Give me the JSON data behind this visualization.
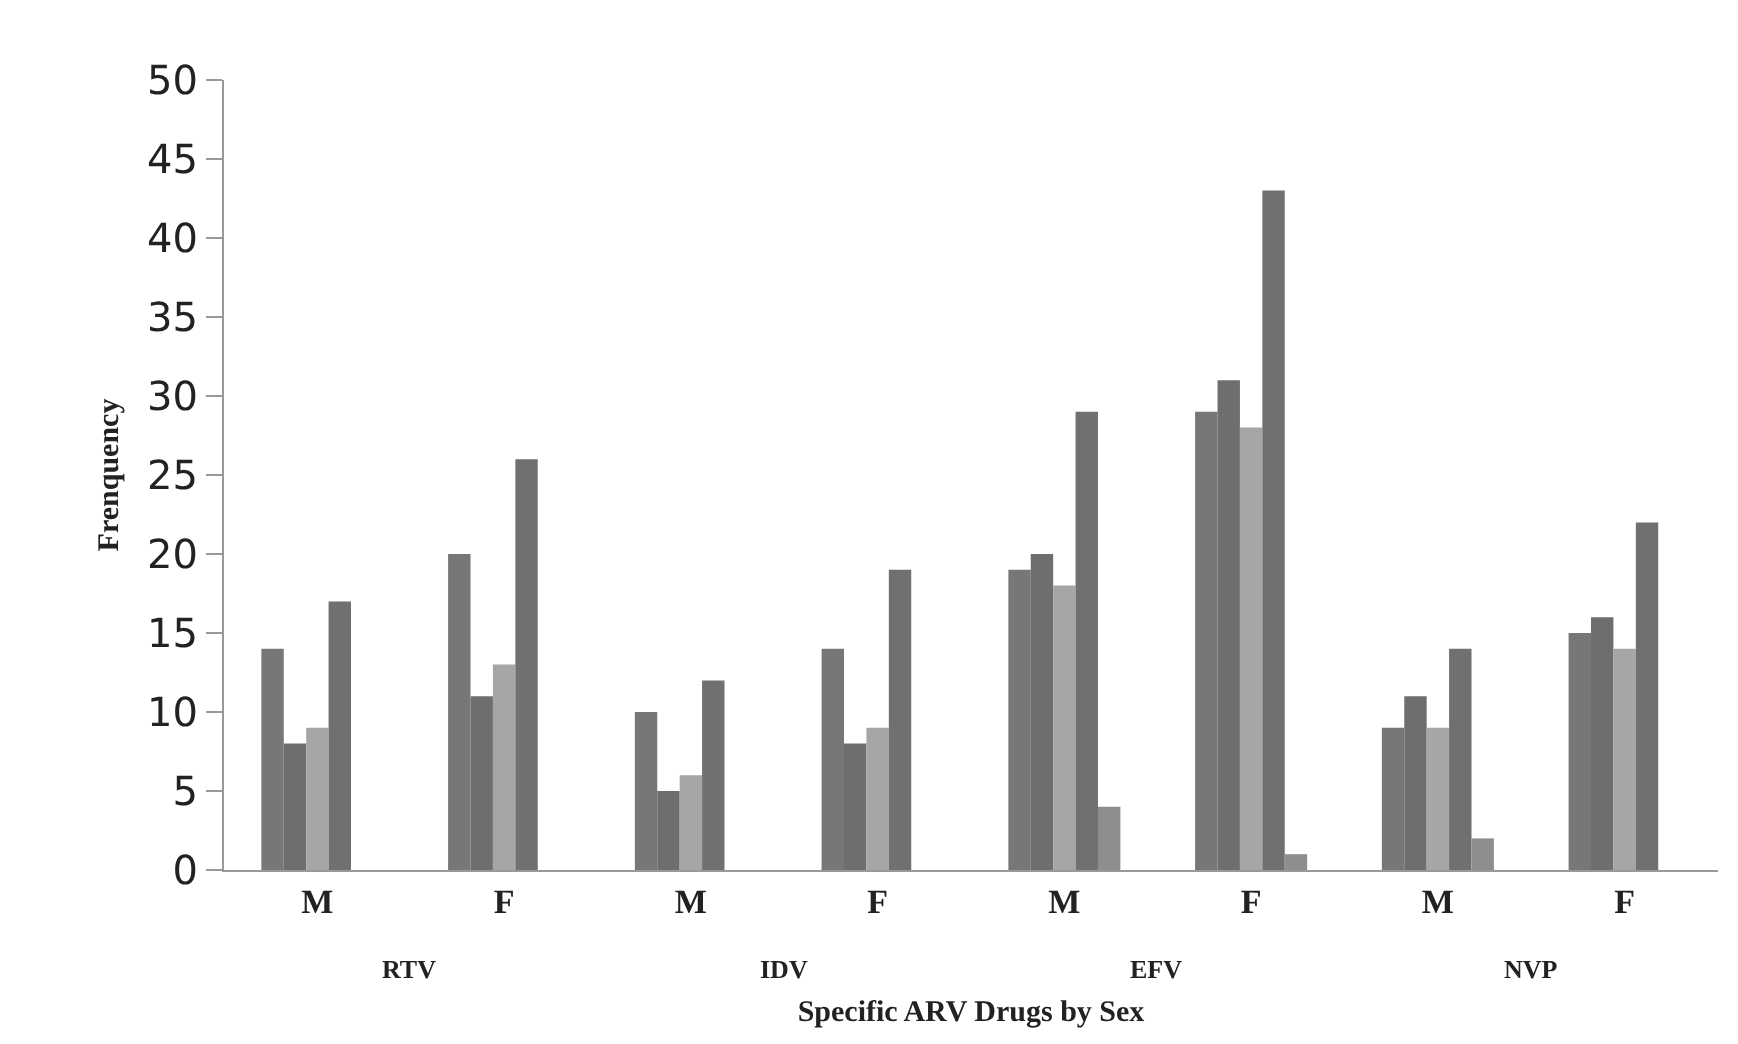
{
  "chart_data": {
    "type": "bar",
    "xlabel": "Specific ARV Drugs by Sex",
    "ylabel": "Frenquency",
    "categories": [
      "M",
      "F",
      "M",
      "F",
      "M",
      "F",
      "M",
      "F"
    ],
    "series": [
      {
        "color": "#777777",
        "values": [
          14,
          20,
          10,
          14,
          19,
          29,
          9,
          15
        ]
      },
      {
        "color": "#6e6e6e",
        "values": [
          8,
          11,
          5,
          8,
          20,
          31,
          11,
          16
        ]
      },
      {
        "color": "#a6a6a6",
        "values": [
          9,
          13,
          6,
          9,
          18,
          28,
          9,
          14
        ]
      },
      {
        "color": "#707070",
        "values": [
          17,
          26,
          12,
          19,
          29,
          43,
          14,
          22
        ]
      },
      {
        "color": "#8e8e8e",
        "values": [
          0,
          0,
          0,
          0,
          4,
          1,
          2,
          0
        ]
      }
    ],
    "annotations": [
      "RTV",
      "IDV",
      "EFV",
      "NVP"
    ],
    "ylim": [
      0,
      50
    ],
    "yticks": [
      0,
      5,
      10,
      15,
      20,
      25,
      30,
      35,
      40,
      45,
      50
    ],
    "grid": false
  }
}
